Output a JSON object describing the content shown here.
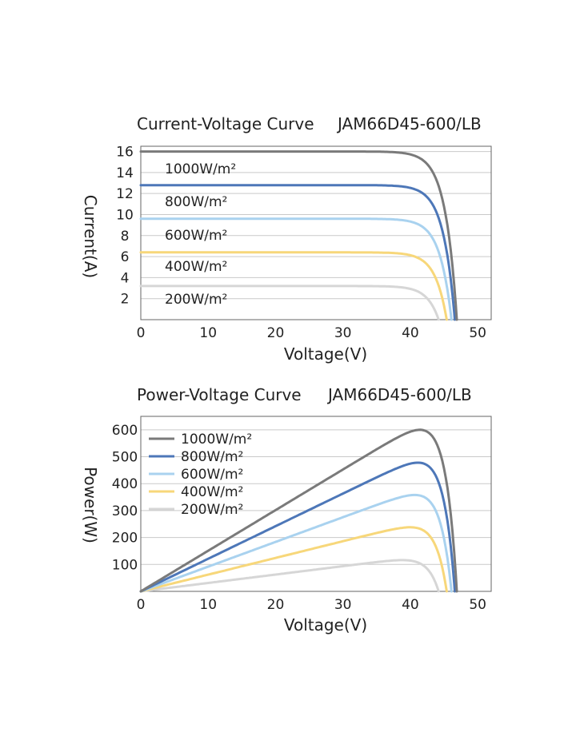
{
  "chart_data": [
    {
      "type": "line",
      "title": "Current-Voltage Curve",
      "model": "JAM66D45-600/LB",
      "xlabel": "Voltage(V)",
      "ylabel": "Current(A)",
      "xlim": [
        0,
        52
      ],
      "ylim": [
        0,
        16.5
      ],
      "xticks": [
        "0",
        "10",
        "20",
        "30",
        "40",
        "50"
      ],
      "yticks": [
        "2",
        "4",
        "6",
        "8",
        "10",
        "12",
        "14",
        "16"
      ],
      "grid": true,
      "legend": "inline labels",
      "series": [
        {
          "name": "1000W/m²",
          "color": "#7a7a7a",
          "isc": 16.0,
          "voc": 46.9
        },
        {
          "name": "800W/m²",
          "color": "#4d77b8",
          "isc": 12.8,
          "voc": 46.6
        },
        {
          "name": "600W/m²",
          "color": "#a9d2ef",
          "isc": 9.6,
          "voc": 46.1
        },
        {
          "name": "400W/m²",
          "color": "#f7d77a",
          "isc": 6.4,
          "voc": 45.4
        },
        {
          "name": "200W/m²",
          "color": "#d6d6d6",
          "isc": 3.2,
          "voc": 44.2
        }
      ]
    },
    {
      "type": "line",
      "title": "Power-Voltage Curve",
      "model": "JAM66D45-600/LB",
      "xlabel": "Voltage(V)",
      "ylabel": "Power(W)",
      "xlim": [
        0,
        52
      ],
      "ylim": [
        0,
        650
      ],
      "xticks": [
        "0",
        "10",
        "20",
        "30",
        "40",
        "50"
      ],
      "yticks": [
        "100",
        "200",
        "300",
        "400",
        "500",
        "600"
      ],
      "grid": true,
      "legend": "top-left",
      "series": [
        {
          "name": "1000W/m²",
          "color": "#7a7a7a",
          "pmax": 600,
          "vmp": 39.5,
          "voc": 46.9
        },
        {
          "name": "800W/m²",
          "color": "#4d77b8",
          "pmax": 478,
          "vmp": 39.3,
          "voc": 46.6
        },
        {
          "name": "600W/m²",
          "color": "#a9d2ef",
          "pmax": 358,
          "vmp": 39.2,
          "voc": 46.1
        },
        {
          "name": "400W/m²",
          "color": "#f7d77a",
          "pmax": 238,
          "vmp": 39.0,
          "voc": 45.4
        },
        {
          "name": "200W/m²",
          "color": "#d6d6d6",
          "pmax": 116,
          "vmp": 38.6,
          "voc": 44.2
        }
      ]
    }
  ]
}
